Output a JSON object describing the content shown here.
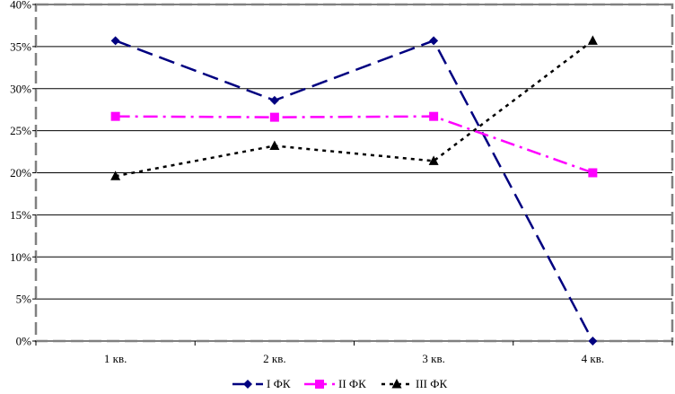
{
  "chart_data": {
    "type": "line",
    "title": "",
    "xlabel": "",
    "ylabel": "",
    "categories": [
      "1 кв.",
      "2 кв.",
      "3 кв.",
      "4 кв."
    ],
    "y_ticks": [
      "0%",
      "5%",
      "10%",
      "15%",
      "20%",
      "25%",
      "30%",
      "35%",
      "40%"
    ],
    "ylim": [
      0,
      40
    ],
    "y_unit": "%",
    "grid": "horizontal",
    "legend_position": "bottom",
    "series": [
      {
        "name": "I ФК",
        "values": [
          35.7,
          28.6,
          35.7,
          0
        ],
        "color": "#000080",
        "line_style": "long-dash",
        "marker": "diamond"
      },
      {
        "name": "II ФК",
        "values": [
          26.7,
          26.6,
          26.7,
          20.0
        ],
        "color": "#FF00FF",
        "line_style": "dash-dot",
        "marker": "square"
      },
      {
        "name": "III ФК",
        "values": [
          19.6,
          23.2,
          21.4,
          35.7
        ],
        "color": "#000000",
        "line_style": "dotted",
        "marker": "triangle"
      }
    ]
  }
}
